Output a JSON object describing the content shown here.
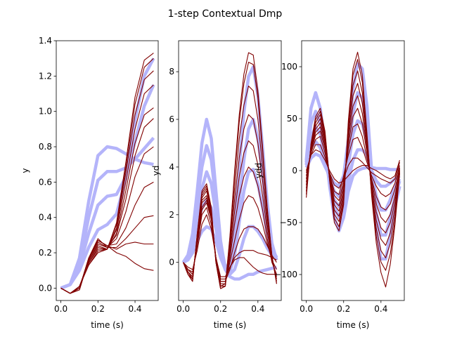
{
  "figure": {
    "title": "1-step Contextual Dmp",
    "demo_color": "#b4b4fa",
    "generated_color": "#800000"
  },
  "chart_data": [
    {
      "type": "line",
      "title": "",
      "xlabel": "time (s)",
      "ylabel": "y",
      "xlim": [
        -0.025,
        0.525
      ],
      "ylim": [
        -0.07,
        1.4
      ],
      "xticks": [
        0.0,
        0.2,
        0.4
      ],
      "xtick_labels": [
        "0.0",
        "0.2",
        "0.4"
      ],
      "yticks": [
        0.0,
        0.2,
        0.4,
        0.6,
        0.8,
        1.0,
        1.2,
        1.4
      ],
      "ytick_labels": [
        "0.0",
        "0.2",
        "0.4",
        "0.6",
        "0.8",
        "1.0",
        "1.2",
        "1.4"
      ],
      "x": [
        0,
        0.05,
        0.1,
        0.15,
        0.2,
        0.25,
        0.3,
        0.35,
        0.4,
        0.45,
        0.5
      ],
      "demo_series": [
        {
          "values": [
            0,
            0.02,
            0.17,
            0.49,
            0.75,
            0.8,
            0.79,
            0.76,
            0.73,
            0.71,
            0.7
          ]
        },
        {
          "values": [
            0,
            0.02,
            0.14,
            0.4,
            0.61,
            0.66,
            0.66,
            0.68,
            0.73,
            0.79,
            0.85
          ]
        },
        {
          "values": [
            0,
            0.02,
            0.12,
            0.31,
            0.47,
            0.52,
            0.53,
            0.63,
            0.83,
            1.03,
            1.15
          ]
        },
        {
          "values": [
            0,
            0.02,
            0.1,
            0.23,
            0.33,
            0.36,
            0.42,
            0.62,
            0.95,
            1.2,
            1.3
          ]
        }
      ],
      "generated_series": [
        {
          "values": [
            0,
            -0.03,
            -0.01,
            0.16,
            0.27,
            0.24,
            0.22,
            0.25,
            0.26,
            0.25,
            0.25
          ]
        },
        {
          "values": [
            0,
            -0.03,
            0.0,
            0.17,
            0.28,
            0.23,
            0.23,
            0.28,
            0.34,
            0.4,
            0.41
          ]
        },
        {
          "values": [
            0,
            -0.03,
            0.0,
            0.17,
            0.27,
            0.24,
            0.25,
            0.34,
            0.47,
            0.57,
            0.6
          ]
        },
        {
          "values": [
            0,
            -0.03,
            0.0,
            0.16,
            0.26,
            0.23,
            0.28,
            0.43,
            0.63,
            0.76,
            0.8
          ]
        },
        {
          "values": [
            0,
            -0.03,
            0.01,
            0.15,
            0.25,
            0.23,
            0.3,
            0.5,
            0.75,
            0.91,
            0.96
          ]
        },
        {
          "values": [
            0,
            -0.03,
            0.01,
            0.15,
            0.24,
            0.22,
            0.31,
            0.55,
            0.82,
            0.98,
            1.02
          ]
        },
        {
          "values": [
            0,
            -0.03,
            0.01,
            0.14,
            0.23,
            0.22,
            0.33,
            0.6,
            0.9,
            1.1,
            1.15
          ]
        },
        {
          "values": [
            0,
            -0.03,
            0.01,
            0.14,
            0.22,
            0.22,
            0.34,
            0.65,
            0.98,
            1.18,
            1.23
          ]
        },
        {
          "values": [
            0,
            -0.03,
            0.01,
            0.13,
            0.21,
            0.22,
            0.36,
            0.68,
            1.04,
            1.25,
            1.3
          ]
        },
        {
          "values": [
            0,
            -0.03,
            0.01,
            0.13,
            0.2,
            0.22,
            0.37,
            0.71,
            1.08,
            1.29,
            1.33
          ]
        },
        {
          "values": [
            0,
            -0.03,
            -0.01,
            0.16,
            0.27,
            0.24,
            0.2,
            0.18,
            0.14,
            0.11,
            0.1
          ]
        }
      ]
    },
    {
      "type": "line",
      "title": "",
      "xlabel": "time (s)",
      "ylabel": "yd",
      "xlim": [
        -0.025,
        0.525
      ],
      "ylim": [
        -1.6,
        9.3
      ],
      "xticks": [
        0.0,
        0.2,
        0.4
      ],
      "xtick_labels": [
        "0.0",
        "0.2",
        "0.4"
      ],
      "yticks": [
        0,
        2,
        4,
        6,
        8
      ],
      "ytick_labels": [
        "0",
        "2",
        "4",
        "6",
        "8"
      ],
      "x": [
        0,
        0.025,
        0.05,
        0.075,
        0.1,
        0.125,
        0.15,
        0.175,
        0.2,
        0.225,
        0.25,
        0.275,
        0.3,
        0.325,
        0.35,
        0.375,
        0.4,
        0.425,
        0.45,
        0.475,
        0.5
      ],
      "demo_series": [
        {
          "values": [
            0,
            0.3,
            1.2,
            3.0,
            5.0,
            6.0,
            5.2,
            3.0,
            0.9,
            -0.3,
            -0.6,
            -0.7,
            -0.7,
            -0.6,
            -0.5,
            -0.5,
            -0.4,
            -0.35,
            -0.3,
            -0.25,
            -0.2
          ]
        },
        {
          "values": [
            0,
            0.3,
            1.0,
            2.5,
            4.0,
            4.9,
            4.3,
            2.6,
            0.8,
            -0.2,
            -0.5,
            -0.3,
            0.3,
            1.0,
            1.5,
            1.5,
            1.3,
            1.0,
            0.6,
            0.3,
            0.2
          ]
        },
        {
          "values": [
            0,
            0.2,
            0.8,
            2.0,
            3.1,
            3.8,
            3.3,
            2.0,
            0.6,
            -0.2,
            -0.4,
            0.3,
            1.7,
            3.0,
            3.8,
            3.9,
            3.3,
            2.3,
            1.2,
            0.4,
            0.1
          ]
        },
        {
          "values": [
            0,
            0.2,
            0.6,
            1.6,
            2.3,
            2.6,
            2.3,
            1.4,
            0.4,
            -0.3,
            -0.3,
            0.8,
            2.6,
            4.3,
            5.6,
            6.0,
            5.2,
            3.6,
            1.9,
            0.6,
            0.2
          ]
        },
        {
          "values": [
            0,
            0.1,
            0.4,
            0.9,
            1.3,
            1.5,
            1.4,
            0.9,
            0.2,
            -0.3,
            0.0,
            1.6,
            4.0,
            6.3,
            7.8,
            8.2,
            7.0,
            4.8,
            2.5,
            0.8,
            0.1
          ]
        }
      ],
      "generated_series": [
        {
          "values": [
            0,
            -0.2,
            -0.3,
            0.5,
            1.6,
            2.0,
            1.4,
            0.2,
            -0.6,
            -0.6,
            -0.2,
            0.1,
            0.2,
            0.2,
            0.0,
            -0.2,
            -0.35,
            -0.45,
            -0.5,
            -0.5,
            -0.5
          ]
        },
        {
          "values": [
            0,
            -0.3,
            -0.4,
            0.7,
            2.0,
            2.3,
            1.6,
            0.2,
            -0.7,
            -0.7,
            -0.2,
            0.2,
            0.4,
            0.5,
            0.5,
            0.5,
            0.4,
            0.35,
            0.3,
            0.2,
            0.1
          ]
        },
        {
          "values": [
            0,
            -0.3,
            -0.5,
            0.8,
            2.2,
            2.5,
            1.8,
            0.2,
            -0.8,
            -0.8,
            -0.3,
            0.4,
            1.0,
            1.4,
            1.5,
            1.5,
            1.4,
            1.1,
            0.7,
            0.3,
            0.0
          ]
        },
        {
          "values": [
            0,
            -0.3,
            -0.5,
            0.9,
            2.3,
            2.6,
            1.9,
            0.2,
            -0.8,
            -0.8,
            0.0,
            0.9,
            1.8,
            2.5,
            2.8,
            2.7,
            2.3,
            1.6,
            0.8,
            0.1,
            -0.3
          ]
        },
        {
          "values": [
            0,
            -0.4,
            -0.6,
            0.9,
            2.5,
            2.7,
            1.9,
            0.1,
            -0.9,
            -0.9,
            0.2,
            1.6,
            2.8,
            3.6,
            4.0,
            3.8,
            3.2,
            2.2,
            1.0,
            0.0,
            -0.5
          ]
        },
        {
          "values": [
            0,
            -0.4,
            -0.6,
            1.0,
            2.6,
            2.8,
            2.0,
            0.1,
            -1.0,
            -0.9,
            0.4,
            2.1,
            3.6,
            4.6,
            5.1,
            4.9,
            4.1,
            2.8,
            1.3,
            0.1,
            -0.6
          ]
        },
        {
          "values": [
            0,
            -0.4,
            -0.7,
            1.1,
            2.7,
            3.0,
            2.1,
            0.1,
            -1.0,
            -1.0,
            0.6,
            2.6,
            4.4,
            5.6,
            6.2,
            6.0,
            5.0,
            3.4,
            1.6,
            0.2,
            -0.7
          ]
        },
        {
          "values": [
            0,
            -0.5,
            -0.7,
            1.1,
            2.8,
            3.1,
            2.2,
            0.0,
            -1.1,
            -1.0,
            0.8,
            3.1,
            5.2,
            6.6,
            7.4,
            7.2,
            6.0,
            4.0,
            1.9,
            0.2,
            -0.8
          ]
        },
        {
          "values": [
            0,
            -0.5,
            -0.8,
            1.2,
            2.9,
            3.2,
            2.2,
            0.0,
            -1.1,
            -1.0,
            1.0,
            3.6,
            5.9,
            7.5,
            8.4,
            8.3,
            6.9,
            4.6,
            2.2,
            0.3,
            -0.9
          ]
        },
        {
          "values": [
            0,
            -0.5,
            -0.8,
            1.2,
            3.0,
            3.3,
            2.3,
            0.0,
            -1.1,
            -1.0,
            1.1,
            3.8,
            6.2,
            7.9,
            8.8,
            8.7,
            7.2,
            4.8,
            2.3,
            0.3,
            -0.9
          ]
        }
      ]
    },
    {
      "type": "line",
      "title": "",
      "xlabel": "time (s)",
      "ylabel": "ydd",
      "xlim": [
        -0.025,
        0.525
      ],
      "ylim": [
        -125,
        125
      ],
      "xticks": [
        0.0,
        0.2,
        0.4
      ],
      "xtick_labels": [
        "0.0",
        "0.2",
        "0.4"
      ],
      "yticks": [
        -100,
        -50,
        0,
        50,
        100
      ],
      "ytick_labels": [
        "−100",
        "−50",
        "0",
        "50",
        "100"
      ],
      "x": [
        0,
        0.025,
        0.05,
        0.075,
        0.1,
        0.125,
        0.15,
        0.175,
        0.2,
        0.225,
        0.25,
        0.275,
        0.3,
        0.325,
        0.35,
        0.375,
        0.4,
        0.425,
        0.45,
        0.475,
        0.5
      ],
      "demo_series": [
        {
          "values": [
            10,
            60,
            75,
            60,
            25,
            -15,
            -45,
            -58,
            -45,
            -20,
            -5,
            0,
            2,
            3,
            3,
            2,
            2,
            2,
            1,
            1,
            1
          ]
        },
        {
          "values": [
            8,
            45,
            57,
            45,
            18,
            -10,
            -35,
            -45,
            -35,
            -10,
            10,
            20,
            20,
            15,
            0,
            -10,
            -15,
            -15,
            -12,
            -8,
            -5
          ]
        },
        {
          "values": [
            6,
            32,
            42,
            35,
            12,
            -10,
            -28,
            -35,
            -25,
            5,
            35,
            48,
            45,
            28,
            0,
            -25,
            -38,
            -38,
            -28,
            -15,
            -8
          ]
        },
        {
          "values": [
            5,
            22,
            28,
            22,
            8,
            -8,
            -20,
            -25,
            -15,
            15,
            55,
            75,
            70,
            45,
            0,
            -40,
            -62,
            -62,
            -45,
            -25,
            -10
          ]
        },
        {
          "values": [
            3,
            12,
            16,
            14,
            4,
            -5,
            -12,
            -15,
            -5,
            30,
            78,
            103,
            98,
            62,
            0,
            -55,
            -85,
            -85,
            -62,
            -35,
            -15
          ]
        }
      ],
      "generated_series": [
        {
          "values": [
            0,
            15,
            20,
            18,
            10,
            0,
            -8,
            -12,
            -10,
            -5,
            0,
            3,
            5,
            5,
            2,
            0,
            -3,
            -6,
            -8,
            -5,
            10
          ]
        },
        {
          "values": [
            -2,
            15,
            25,
            25,
            13,
            -2,
            -14,
            -17,
            -8,
            5,
            12,
            12,
            8,
            3,
            -2,
            -5,
            -8,
            -10,
            -12,
            -8,
            8
          ]
        },
        {
          "values": [
            -5,
            17,
            30,
            33,
            17,
            -3,
            -20,
            -23,
            -5,
            15,
            30,
            32,
            22,
            8,
            -5,
            -15,
            -22,
            -25,
            -22,
            -12,
            5
          ]
        },
        {
          "values": [
            -8,
            19,
            34,
            38,
            21,
            -4,
            -24,
            -29,
            -10,
            20,
            42,
            45,
            33,
            12,
            -8,
            -25,
            -35,
            -38,
            -32,
            -18,
            3
          ]
        },
        {
          "values": [
            -11,
            20,
            37,
            42,
            24,
            -5,
            -29,
            -34,
            -14,
            25,
            52,
            60,
            45,
            17,
            -10,
            -32,
            -45,
            -50,
            -42,
            -25,
            2
          ]
        },
        {
          "values": [
            -14,
            22,
            40,
            46,
            27,
            -6,
            -33,
            -39,
            -18,
            30,
            62,
            72,
            55,
            21,
            -13,
            -40,
            -55,
            -60,
            -50,
            -30,
            1
          ]
        },
        {
          "values": [
            -17,
            23,
            43,
            50,
            30,
            -7,
            -38,
            -44,
            -22,
            35,
            72,
            84,
            65,
            25,
            -16,
            -48,
            -66,
            -72,
            -60,
            -36,
            0
          ]
        },
        {
          "values": [
            -20,
            24,
            46,
            54,
            33,
            -8,
            -42,
            -49,
            -26,
            40,
            82,
            96,
            75,
            29,
            -19,
            -56,
            -77,
            -84,
            -70,
            -42,
            -1
          ]
        },
        {
          "values": [
            -23,
            25,
            49,
            57,
            36,
            -9,
            -46,
            -54,
            -30,
            45,
            92,
            107,
            85,
            33,
            -22,
            -63,
            -88,
            -96,
            -80,
            -48,
            -2
          ]
        },
        {
          "values": [
            -26,
            26,
            52,
            60,
            38,
            -10,
            -50,
            -58,
            -33,
            48,
            98,
            114,
            92,
            36,
            -24,
            -70,
            -98,
            -112,
            -90,
            -52,
            -3
          ]
        }
      ]
    }
  ]
}
